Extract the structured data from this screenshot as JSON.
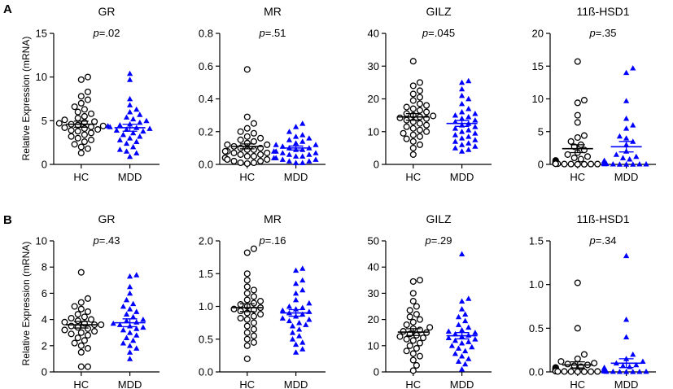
{
  "figure": {
    "panel_labels": [
      "A",
      "B"
    ],
    "ylabels": [
      "Relative  Expression (mRNA)",
      "Relative Expression (mRNA)"
    ]
  },
  "colors": {
    "hc_marker": "#000000",
    "mdd_marker": "#0000ff",
    "axis": "#000000"
  },
  "chart_data": [
    {
      "type": "scatter",
      "panel": "A",
      "title": "GR",
      "p_prefix": "p",
      "p_value": "=.02",
      "categories": [
        "HC",
        "MDD"
      ],
      "ylim": [
        0,
        15
      ],
      "yticks": [
        "0",
        "5",
        "10",
        "15"
      ],
      "tick_values": [
        0,
        5,
        10,
        15
      ],
      "series": [
        {
          "name": "HC",
          "marker": "circle",
          "mean": 4.6,
          "sem": 0.35,
          "values": [
            10.0,
            9.7,
            8.3,
            7.8,
            7.4,
            7.0,
            6.6,
            6.3,
            6.0,
            5.8,
            5.5,
            5.3,
            5.1,
            4.9,
            4.8,
            4.7,
            4.6,
            4.5,
            4.4,
            4.3,
            4.2,
            4.1,
            4.0,
            3.9,
            3.8,
            3.6,
            3.4,
            3.2,
            3.0,
            2.8,
            2.6,
            2.3,
            2.0,
            1.8,
            1.3
          ]
        },
        {
          "name": "MDD",
          "marker": "triangle",
          "mean": 4.2,
          "sem": 0.4,
          "values": [
            10.4,
            9.7,
            7.5,
            6.8,
            6.3,
            6.0,
            5.7,
            5.4,
            5.2,
            5.0,
            4.8,
            4.6,
            4.5,
            4.4,
            4.3,
            4.2,
            4.1,
            4.0,
            3.9,
            3.8,
            3.6,
            3.4,
            3.2,
            3.0,
            2.8,
            2.6,
            2.4,
            2.0,
            1.7,
            1.5,
            1.3,
            0.9
          ]
        }
      ]
    },
    {
      "type": "scatter",
      "panel": "A",
      "title": "MR",
      "p_prefix": "p",
      "p_value": "=.51",
      "categories": [
        "HC",
        "MDD"
      ],
      "ylim": [
        0,
        0.8
      ],
      "yticks": [
        "0.0",
        "0.2",
        "0.4",
        "0.6",
        "0.8"
      ],
      "tick_values": [
        0,
        0.2,
        0.4,
        0.6,
        0.8
      ],
      "series": [
        {
          "name": "HC",
          "marker": "circle",
          "mean": 0.11,
          "sem": 0.015,
          "values": [
            0.58,
            0.29,
            0.25,
            0.22,
            0.2,
            0.19,
            0.17,
            0.16,
            0.15,
            0.14,
            0.13,
            0.12,
            0.12,
            0.11,
            0.1,
            0.1,
            0.09,
            0.09,
            0.08,
            0.08,
            0.07,
            0.07,
            0.06,
            0.06,
            0.05,
            0.05,
            0.04,
            0.04,
            0.03,
            0.03,
            0.02,
            0.02,
            0.01,
            0.01,
            0.005
          ]
        },
        {
          "name": "MDD",
          "marker": "triangle",
          "mean": 0.1,
          "sem": 0.012,
          "values": [
            0.25,
            0.23,
            0.2,
            0.18,
            0.17,
            0.16,
            0.15,
            0.14,
            0.13,
            0.12,
            0.12,
            0.11,
            0.1,
            0.1,
            0.09,
            0.09,
            0.08,
            0.08,
            0.07,
            0.07,
            0.06,
            0.06,
            0.05,
            0.05,
            0.04,
            0.04,
            0.03,
            0.03,
            0.02,
            0.02,
            0.01,
            0.01
          ]
        }
      ]
    },
    {
      "type": "scatter",
      "panel": "A",
      "title": "GILZ",
      "p_prefix": "p",
      "p_value": "=.045",
      "categories": [
        "HC",
        "MDD"
      ],
      "ylim": [
        0,
        40
      ],
      "yticks": [
        "0",
        "10",
        "20",
        "30",
        "40"
      ],
      "tick_values": [
        0,
        10,
        20,
        30,
        40
      ],
      "series": [
        {
          "name": "HC",
          "marker": "circle",
          "mean": 14.5,
          "sem": 1.0,
          "values": [
            31.5,
            25.0,
            24.0,
            22.5,
            21.5,
            20.5,
            19.5,
            18.5,
            18.0,
            17.5,
            17.0,
            16.5,
            16.0,
            15.5,
            15.0,
            14.8,
            14.5,
            14.2,
            14.0,
            13.5,
            13.0,
            12.5,
            12.0,
            11.5,
            11.0,
            10.5,
            10.0,
            9.5,
            9.0,
            8.5,
            7.8,
            7.0,
            6.0,
            5.0,
            3.0
          ]
        },
        {
          "name": "MDD",
          "marker": "triangle",
          "mean": 12.5,
          "sem": 0.9,
          "values": [
            25.5,
            25.0,
            23.0,
            21.0,
            20.0,
            18.5,
            17.0,
            16.0,
            15.5,
            15.0,
            14.5,
            14.0,
            13.5,
            13.0,
            12.5,
            12.0,
            11.5,
            11.0,
            10.5,
            10.0,
            9.5,
            9.0,
            8.5,
            8.0,
            7.5,
            7.0,
            6.5,
            6.0,
            5.5,
            5.0,
            4.5,
            4.0
          ]
        }
      ]
    },
    {
      "type": "scatter",
      "panel": "A",
      "title": "11ß-HSD1",
      "p_prefix": "p",
      "p_value": "=.35",
      "categories": [
        "HC",
        "MDD"
      ],
      "ylim": [
        0,
        20
      ],
      "yticks": [
        "0",
        "5",
        "10",
        "15",
        "20"
      ],
      "tick_values": [
        0,
        5,
        10,
        15,
        20
      ],
      "series": [
        {
          "name": "HC",
          "marker": "circle",
          "mean": 2.4,
          "sem": 0.6,
          "values": [
            15.7,
            9.8,
            9.4,
            7.5,
            6.4,
            4.4,
            4.1,
            3.5,
            3.0,
            2.7,
            2.2,
            1.8,
            1.5,
            1.2,
            1.0,
            0.8,
            0.6,
            0.5,
            0.4,
            0.3,
            0.3,
            0.2,
            0.2,
            0.2,
            0.1,
            0.1,
            0.1,
            0.1,
            0.1,
            0.05,
            0.05,
            0.05,
            0.05,
            0.02,
            0.02
          ]
        },
        {
          "name": "MDD",
          "marker": "triangle",
          "mean": 2.7,
          "sem": 0.8,
          "values": [
            14.7,
            14.0,
            9.7,
            7.0,
            6.0,
            5.5,
            4.3,
            4.0,
            3.5,
            3.0,
            2.0,
            1.5,
            1.2,
            1.0,
            0.8,
            0.6,
            0.5,
            0.4,
            0.3,
            0.2,
            0.2,
            0.2,
            0.1,
            0.1,
            0.1,
            0.1,
            0.05,
            0.05,
            0.05,
            0.02,
            0.02,
            0.02
          ]
        }
      ]
    },
    {
      "type": "scatter",
      "panel": "B",
      "title": "GR",
      "p_prefix": "p",
      "p_value": "=.43",
      "categories": [
        "HC",
        "MDD"
      ],
      "ylim": [
        0,
        10
      ],
      "yticks": [
        "0",
        "2",
        "4",
        "6",
        "8",
        "10"
      ],
      "tick_values": [
        0,
        2,
        4,
        6,
        8,
        10
      ],
      "series": [
        {
          "name": "HC",
          "marker": "circle",
          "mean": 3.6,
          "sem": 0.25,
          "values": [
            7.6,
            5.6,
            5.3,
            5.0,
            4.8,
            4.6,
            4.4,
            4.2,
            4.1,
            4.0,
            3.9,
            3.8,
            3.7,
            3.6,
            3.6,
            3.5,
            3.4,
            3.3,
            3.2,
            3.1,
            3.0,
            2.9,
            2.8,
            2.6,
            2.4,
            2.2,
            2.0,
            1.8,
            1.5,
            0.4,
            0.4
          ]
        },
        {
          "name": "MDD",
          "marker": "triangle",
          "mean": 3.75,
          "sem": 0.3,
          "values": [
            7.4,
            7.3,
            6.5,
            6.0,
            5.5,
            5.2,
            5.0,
            4.8,
            4.6,
            4.4,
            4.2,
            4.0,
            3.9,
            3.8,
            3.7,
            3.6,
            3.5,
            3.4,
            3.3,
            3.2,
            3.0,
            2.8,
            2.6,
            2.4,
            2.2,
            2.0,
            1.8,
            1.5,
            1.0
          ]
        }
      ]
    },
    {
      "type": "scatter",
      "panel": "B",
      "title": "MR",
      "p_prefix": "p",
      "p_value": "=.16",
      "categories": [
        "HC",
        "MDD"
      ],
      "ylim": [
        0,
        2.0
      ],
      "yticks": [
        "0.0",
        "0.5",
        "1.0",
        "1.5",
        "2.0"
      ],
      "tick_values": [
        0,
        0.5,
        1.0,
        1.5,
        2.0
      ],
      "series": [
        {
          "name": "HC",
          "marker": "circle",
          "mean": 0.98,
          "sem": 0.06,
          "values": [
            1.88,
            1.82,
            1.5,
            1.4,
            1.3,
            1.25,
            1.2,
            1.15,
            1.1,
            1.08,
            1.05,
            1.03,
            1.0,
            0.98,
            0.96,
            0.95,
            0.93,
            0.9,
            0.88,
            0.85,
            0.82,
            0.8,
            0.75,
            0.7,
            0.65,
            0.6,
            0.55,
            0.5,
            0.45,
            0.4,
            0.2
          ]
        },
        {
          "name": "MDD",
          "marker": "triangle",
          "mean": 0.9,
          "sem": 0.05,
          "values": [
            1.58,
            1.55,
            1.4,
            1.35,
            1.25,
            1.2,
            1.1,
            1.05,
            1.0,
            0.98,
            0.96,
            0.94,
            0.92,
            0.9,
            0.88,
            0.85,
            0.82,
            0.8,
            0.78,
            0.75,
            0.72,
            0.7,
            0.65,
            0.6,
            0.55,
            0.5,
            0.45,
            0.42,
            0.35,
            0.3
          ]
        }
      ]
    },
    {
      "type": "scatter",
      "panel": "B",
      "title": "GILZ",
      "p_prefix": "p",
      "p_value": "=.29",
      "categories": [
        "HC",
        "MDD"
      ],
      "ylim": [
        0,
        50
      ],
      "yticks": [
        "0",
        "10",
        "20",
        "30",
        "40",
        "50"
      ],
      "tick_values": [
        0,
        10,
        20,
        30,
        40,
        50
      ],
      "series": [
        {
          "name": "HC",
          "marker": "circle",
          "mean": 15.2,
          "sem": 1.3,
          "values": [
            35.0,
            34.5,
            30.0,
            27.0,
            25.0,
            23.5,
            22.0,
            21.0,
            20.0,
            19.0,
            18.0,
            17.0,
            16.5,
            16.0,
            15.5,
            15.0,
            14.5,
            14.0,
            13.5,
            13.0,
            12.5,
            12.0,
            11.0,
            10.0,
            9.0,
            8.0,
            7.0,
            6.0,
            4.5,
            2.5,
            0.5
          ]
        },
        {
          "name": "MDD",
          "marker": "triangle",
          "mean": 13.8,
          "sem": 1.2,
          "values": [
            45.0,
            28.0,
            27.0,
            24.0,
            22.0,
            21.0,
            19.5,
            18.0,
            17.0,
            16.0,
            15.5,
            15.0,
            14.5,
            14.0,
            13.5,
            13.0,
            12.5,
            12.0,
            11.5,
            11.0,
            10.0,
            9.5,
            9.0,
            8.0,
            7.0,
            6.0,
            5.0,
            4.0,
            3.0,
            1.0
          ]
        }
      ]
    },
    {
      "type": "scatter",
      "panel": "B",
      "title": "11ß-HSD1",
      "p_prefix": "p",
      "p_value": "=.34",
      "categories": [
        "HC",
        "MDD"
      ],
      "ylim": [
        0,
        1.5
      ],
      "yticks": [
        "0.0",
        "0.5",
        "1.0",
        "1.5"
      ],
      "tick_values": [
        0,
        0.5,
        1.0,
        1.5
      ],
      "series": [
        {
          "name": "HC",
          "marker": "circle",
          "mean": 0.08,
          "sem": 0.035,
          "values": [
            1.02,
            0.5,
            0.2,
            0.15,
            0.12,
            0.1,
            0.09,
            0.08,
            0.07,
            0.06,
            0.05,
            0.05,
            0.04,
            0.04,
            0.03,
            0.03,
            0.02,
            0.02,
            0.02,
            0.01,
            0.01,
            0.01,
            0.01,
            0.005,
            0.005,
            0.005,
            0.003,
            0.003,
            0.002,
            0.002
          ]
        },
        {
          "name": "MDD",
          "marker": "triangle",
          "mean": 0.1,
          "sem": 0.05,
          "values": [
            1.33,
            0.6,
            0.4,
            0.2,
            0.15,
            0.12,
            0.1,
            0.08,
            0.07,
            0.06,
            0.05,
            0.04,
            0.04,
            0.03,
            0.03,
            0.02,
            0.02,
            0.02,
            0.01,
            0.01,
            0.01,
            0.005,
            0.005,
            0.005,
            0.003,
            0.003,
            0.002,
            0.002
          ]
        }
      ]
    }
  ]
}
